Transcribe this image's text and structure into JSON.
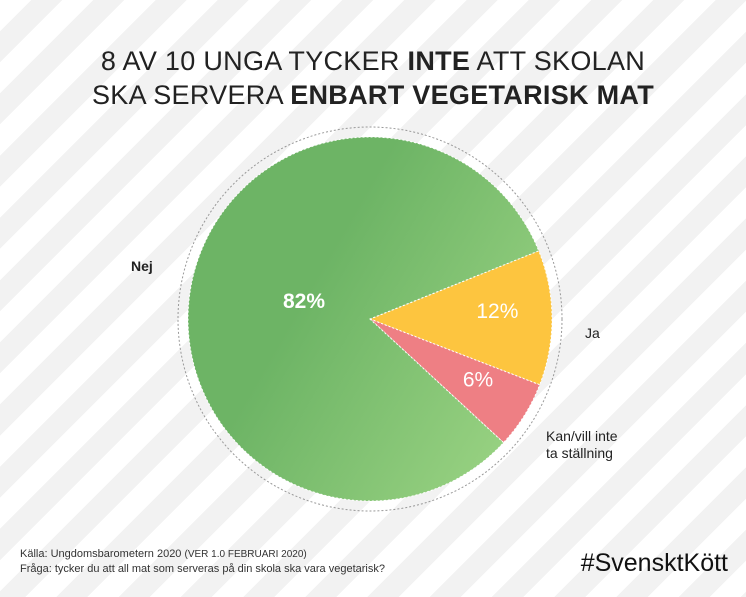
{
  "title": {
    "line1_pre": "8 AV 10 UNGA TYCKER ",
    "line1_bold": "INTE",
    "line1_post": " ATT SKOLAN",
    "line2_pre": "SKA SERVERA ",
    "line2_bold": "ENBART VEGETARISK MAT"
  },
  "chart_data": {
    "type": "pie",
    "slices": [
      {
        "label": "Nej",
        "value": 82,
        "value_label": "82%",
        "color": "#6db465",
        "color_light": "#9ad383"
      },
      {
        "label": "Ja",
        "value": 12,
        "value_label": "12%",
        "color": "#fdc53f",
        "color_light": "#fdc53f"
      },
      {
        "label": "Kan/vill inte ta ställning",
        "value": 6,
        "value_label": "6%",
        "color": "#ee7f84",
        "color_light": "#ee7f84"
      }
    ]
  },
  "legend": {
    "nej": "Nej",
    "ja": "Ja",
    "kan_line1": "Kan/vill inte",
    "kan_line2": "ta ställning"
  },
  "source": {
    "line1_a": "Källa: Ungdomsbarometern 2020 ",
    "line1_b": "(VER 1.0 FEBRUARI 2020)",
    "line2": "Fråga: tycker du att all mat som serveras på din skola ska vara vegetarisk?"
  },
  "hashtag": "#SvensktKött"
}
